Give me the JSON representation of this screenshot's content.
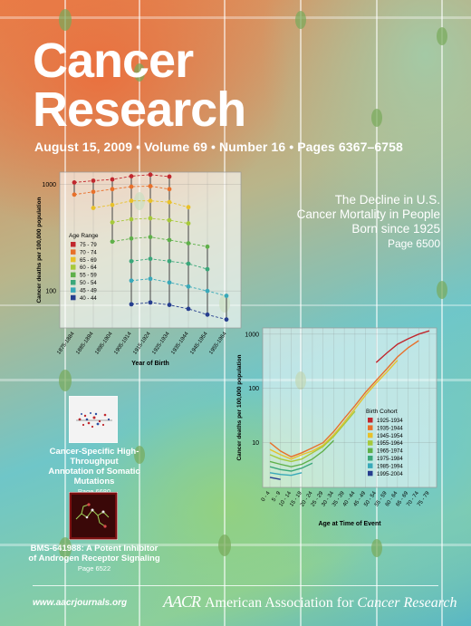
{
  "journal": {
    "title_line1": "Cancer",
    "title_line2": "Research"
  },
  "issue_info": "August 15, 2009 • Volume 69 • Number 16 • Pages 6367–6758",
  "feature": {
    "headline": "The Decline in U.S. Cancer Mortality in People Born since 1925",
    "page": "Page 6500"
  },
  "thumbnails": [
    {
      "caption": "Cancer-Specific High-Throughput Annotation of Somatic Mutations",
      "page": "Page 6680"
    },
    {
      "caption": "BMS-641988: A Potent Inhibitor of Androgen Receptor Signaling",
      "page": "Page 6522"
    }
  ],
  "footer": {
    "url": "www.aacrjournals.org",
    "logo_text": "AACR",
    "org_prefix": "American Association for ",
    "org_bold": "Cancer Research"
  },
  "chart_data": [
    {
      "type": "line",
      "ylabel": "Cancer deaths per 100,000 population",
      "xlabel": "Year of Birth",
      "yscale": "log",
      "yticks": [
        100,
        1000
      ],
      "ylim": [
        45,
        1300
      ],
      "categories": [
        "1875-1884",
        "1885-1894",
        "1895-1904",
        "1905-1914",
        "1915-1924",
        "1925-1934",
        "1935-1944",
        "1945-1954",
        "1955-1964"
      ],
      "legend_title": "Age Range",
      "legend_position": "left-middle",
      "series": [
        {
          "name": "75 - 79",
          "color": "#c1272d",
          "values": [
            1040,
            1080,
            1110,
            1190,
            1230,
            1180,
            null,
            null,
            null
          ]
        },
        {
          "name": "70 - 74",
          "color": "#e8702a",
          "values": [
            800,
            850,
            900,
            950,
            960,
            900,
            null,
            null,
            null
          ]
        },
        {
          "name": "65 - 69",
          "color": "#e8c12a",
          "values": [
            null,
            600,
            640,
            700,
            700,
            680,
            610,
            null,
            null
          ]
        },
        {
          "name": "60 - 64",
          "color": "#a6c93a",
          "values": [
            null,
            null,
            440,
            470,
            480,
            460,
            430,
            null,
            null
          ]
        },
        {
          "name": "55 - 59",
          "color": "#5fb04a",
          "values": [
            null,
            null,
            290,
            310,
            320,
            300,
            280,
            260,
            null
          ]
        },
        {
          "name": "50 - 54",
          "color": "#3aa77a",
          "values": [
            null,
            null,
            null,
            190,
            200,
            190,
            180,
            160,
            null
          ]
        },
        {
          "name": "45 - 49",
          "color": "#39a9b9",
          "values": [
            null,
            null,
            null,
            125,
            130,
            120,
            110,
            100,
            90
          ]
        },
        {
          "name": "40 - 44",
          "color": "#263e8f",
          "values": [
            null,
            null,
            null,
            75,
            78,
            74,
            68,
            60,
            54
          ]
        }
      ]
    },
    {
      "type": "line",
      "ylabel": "Cancer deaths per 100,000 population",
      "xlabel": "Age at Time of Event",
      "yscale": "log",
      "yticks": [
        10,
        100,
        1000
      ],
      "ylim": [
        1.5,
        1300
      ],
      "categories": [
        "0 - 4",
        "5 - 9",
        "10 - 14",
        "15 - 19",
        "20 - 24",
        "25 - 29",
        "30 - 34",
        "35 - 39",
        "40 - 44",
        "45 - 49",
        "50 - 54",
        "55 - 59",
        "60 - 64",
        "65 - 69",
        "70 - 74",
        "75 - 79"
      ],
      "legend_title": "Birth Cohort",
      "legend_position": "bottom-right",
      "series": [
        {
          "name": "1925-1934",
          "color": "#c1272d",
          "values": [
            null,
            null,
            null,
            null,
            null,
            null,
            null,
            null,
            null,
            null,
            300,
            450,
            650,
            820,
            1000,
            1150
          ]
        },
        {
          "name": "1935-1944",
          "color": "#e8702a",
          "values": [
            10,
            7,
            5.5,
            6.5,
            8,
            10,
            16,
            28,
            48,
            85,
            140,
            230,
            380,
            560,
            760,
            null
          ]
        },
        {
          "name": "1945-1954",
          "color": "#e8c12a",
          "values": [
            7.5,
            6,
            5,
            6,
            7,
            9,
            14,
            24,
            42,
            75,
            125,
            200,
            330,
            null,
            null,
            null
          ]
        },
        {
          "name": "1955-1964",
          "color": "#a6c93a",
          "values": [
            6,
            5,
            4.5,
            5,
            6.5,
            8.5,
            13,
            22,
            38,
            null,
            null,
            null,
            null,
            null,
            null,
            null
          ]
        },
        {
          "name": "1965-1974",
          "color": "#5fb04a",
          "values": [
            4.5,
            4,
            3.6,
            4,
            5,
            7,
            11,
            null,
            null,
            null,
            null,
            null,
            null,
            null,
            null,
            null
          ]
        },
        {
          "name": "1975-1984",
          "color": "#3aa77a",
          "values": [
            3.6,
            3.2,
            3,
            3.4,
            4.2,
            null,
            null,
            null,
            null,
            null,
            null,
            null,
            null,
            null,
            null,
            null
          ]
        },
        {
          "name": "1985-1994",
          "color": "#39a9b9",
          "values": [
            2.8,
            2.6,
            2.5,
            2.8,
            null,
            null,
            null,
            null,
            null,
            null,
            null,
            null,
            null,
            null,
            null,
            null
          ]
        },
        {
          "name": "1995-2004",
          "color": "#263e8f",
          "values": [
            2.3,
            2.1,
            null,
            null,
            null,
            null,
            null,
            null,
            null,
            null,
            null,
            null,
            null,
            null,
            null,
            null
          ]
        }
      ]
    }
  ]
}
